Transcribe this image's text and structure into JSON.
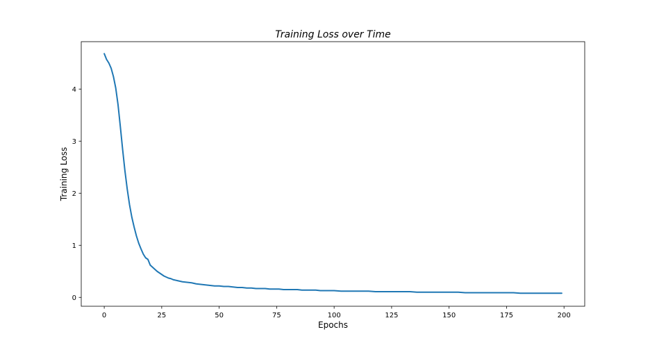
{
  "chart_data": {
    "type": "line",
    "title": "Training Loss over Time",
    "xlabel": "Epochs",
    "ylabel": "Training Loss",
    "xlim": [
      -10,
      209
    ],
    "ylim": [
      -0.17,
      4.91
    ],
    "xticks": [
      0,
      25,
      50,
      75,
      100,
      125,
      150,
      175,
      200
    ],
    "yticks": [
      0,
      1,
      2,
      3,
      4
    ],
    "grid": false,
    "line_color": "#1f77b4",
    "series": [
      {
        "name": "",
        "x": [
          0,
          1,
          2,
          3,
          4,
          5,
          6,
          7,
          8,
          9,
          10,
          11,
          12,
          13,
          14,
          15,
          16,
          17,
          18,
          19,
          20,
          21,
          22,
          23,
          24,
          25,
          26,
          27,
          28,
          29,
          30,
          32,
          34,
          36,
          38,
          40,
          42,
          44,
          46,
          48,
          50,
          52,
          54,
          56,
          58,
          60,
          62,
          64,
          66,
          68,
          70,
          72,
          74,
          76,
          78,
          80,
          82,
          84,
          86,
          88,
          90,
          92,
          94,
          96,
          98,
          100,
          103,
          106,
          109,
          112,
          115,
          118,
          121,
          124,
          127,
          130,
          133,
          136,
          139,
          142,
          145,
          148,
          151,
          154,
          157,
          160,
          163,
          166,
          169,
          172,
          175,
          178,
          181,
          184,
          187,
          190,
          193,
          196,
          199
        ],
        "y": [
          4.68,
          4.57,
          4.5,
          4.4,
          4.24,
          4.02,
          3.7,
          3.28,
          2.84,
          2.43,
          2.08,
          1.78,
          1.54,
          1.35,
          1.18,
          1.04,
          0.93,
          0.83,
          0.76,
          0.73,
          0.62,
          0.58,
          0.54,
          0.5,
          0.47,
          0.44,
          0.41,
          0.39,
          0.37,
          0.36,
          0.34,
          0.32,
          0.3,
          0.29,
          0.28,
          0.26,
          0.25,
          0.24,
          0.23,
          0.22,
          0.22,
          0.21,
          0.21,
          0.2,
          0.19,
          0.19,
          0.18,
          0.18,
          0.17,
          0.17,
          0.17,
          0.16,
          0.16,
          0.16,
          0.15,
          0.15,
          0.15,
          0.15,
          0.14,
          0.14,
          0.14,
          0.14,
          0.13,
          0.13,
          0.13,
          0.13,
          0.12,
          0.12,
          0.12,
          0.12,
          0.12,
          0.11,
          0.11,
          0.11,
          0.11,
          0.11,
          0.11,
          0.1,
          0.1,
          0.1,
          0.1,
          0.1,
          0.1,
          0.1,
          0.09,
          0.09,
          0.09,
          0.09,
          0.09,
          0.09,
          0.09,
          0.09,
          0.08,
          0.08,
          0.08,
          0.08,
          0.08,
          0.08,
          0.08
        ]
      }
    ]
  }
}
